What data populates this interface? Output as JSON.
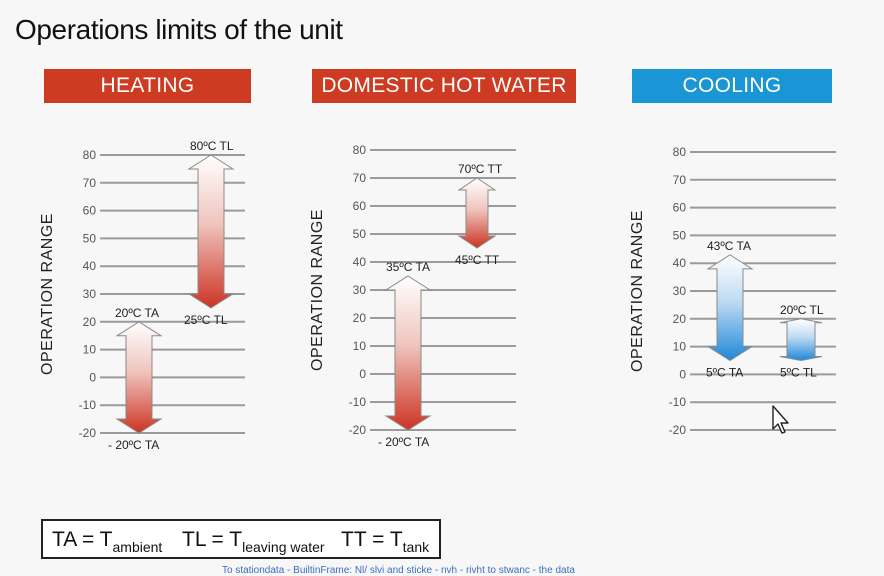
{
  "page": {
    "title": "Operations limits of the unit"
  },
  "panels": {
    "heating": {
      "header": "HEATING",
      "header_color": "#cc3b22"
    },
    "dhw": {
      "header": "DOMESTIC HOT WATER",
      "header_color": "#cc3b22"
    },
    "cooling": {
      "header": "COOLING",
      "header_color": "#1a95d6"
    }
  },
  "chart_data": [
    {
      "type": "range",
      "ylabel": "OPERATION RANGE",
      "ylim": [
        -20,
        80
      ],
      "yticks": [
        80,
        70,
        60,
        50,
        40,
        30,
        20,
        10,
        0,
        -10,
        -20
      ],
      "grid": true,
      "ranges": [
        {
          "high": 80,
          "low": 25,
          "top_label": "80ºC TL",
          "bottom_label": "25ºC TL",
          "color": "red",
          "direction": "down"
        },
        {
          "high": 20,
          "low": -20,
          "top_label": "20ºC TA",
          "bottom_label": "- 20ºC TA",
          "color": "red",
          "direction": "down"
        }
      ]
    },
    {
      "type": "range",
      "ylabel": "OPERATION RANGE",
      "ylim": [
        -20,
        80
      ],
      "yticks": [
        80,
        70,
        60,
        50,
        40,
        30,
        20,
        10,
        0,
        -10,
        -20
      ],
      "grid": true,
      "ranges": [
        {
          "high": 70,
          "low": 45,
          "top_label": "70ºC TT",
          "bottom_label": "45ºC TT",
          "color": "red",
          "direction": "down"
        },
        {
          "high": 35,
          "low": -20,
          "top_label": "35ºC TA",
          "bottom_label": "- 20ºC TA",
          "color": "red",
          "direction": "down"
        }
      ]
    },
    {
      "type": "range",
      "ylabel": "OPERATION RANGE",
      "ylim": [
        -20,
        80
      ],
      "yticks": [
        80,
        70,
        60,
        50,
        40,
        30,
        20,
        10,
        0,
        -10,
        -20
      ],
      "grid": true,
      "ranges": [
        {
          "high": 43,
          "low": 5,
          "top_label": "43ºC TA",
          "bottom_label": "5ºC TA",
          "color": "blue",
          "direction": "down"
        },
        {
          "high": 20,
          "low": 5,
          "top_label": "20ºC TL",
          "bottom_label": "5ºC TL",
          "color": "blue",
          "direction": "down"
        }
      ]
    }
  ],
  "legend": {
    "ta_main": "TA = T",
    "ta_sub": "ambient",
    "tl_main": "TL = T",
    "tl_sub": "leaving water",
    "tt_main": "TT = T",
    "tt_sub": "tank"
  },
  "footer": {
    "text": "To stationdata - BuiltinFrame: Nl/ slvi and sticke - nvh - rivht to stwanc - the data"
  },
  "colors": {
    "red_strong": "#cc3322",
    "blue_strong": "#1e88d8",
    "grid": "#9a9a9a",
    "tick_text": "#555555"
  }
}
